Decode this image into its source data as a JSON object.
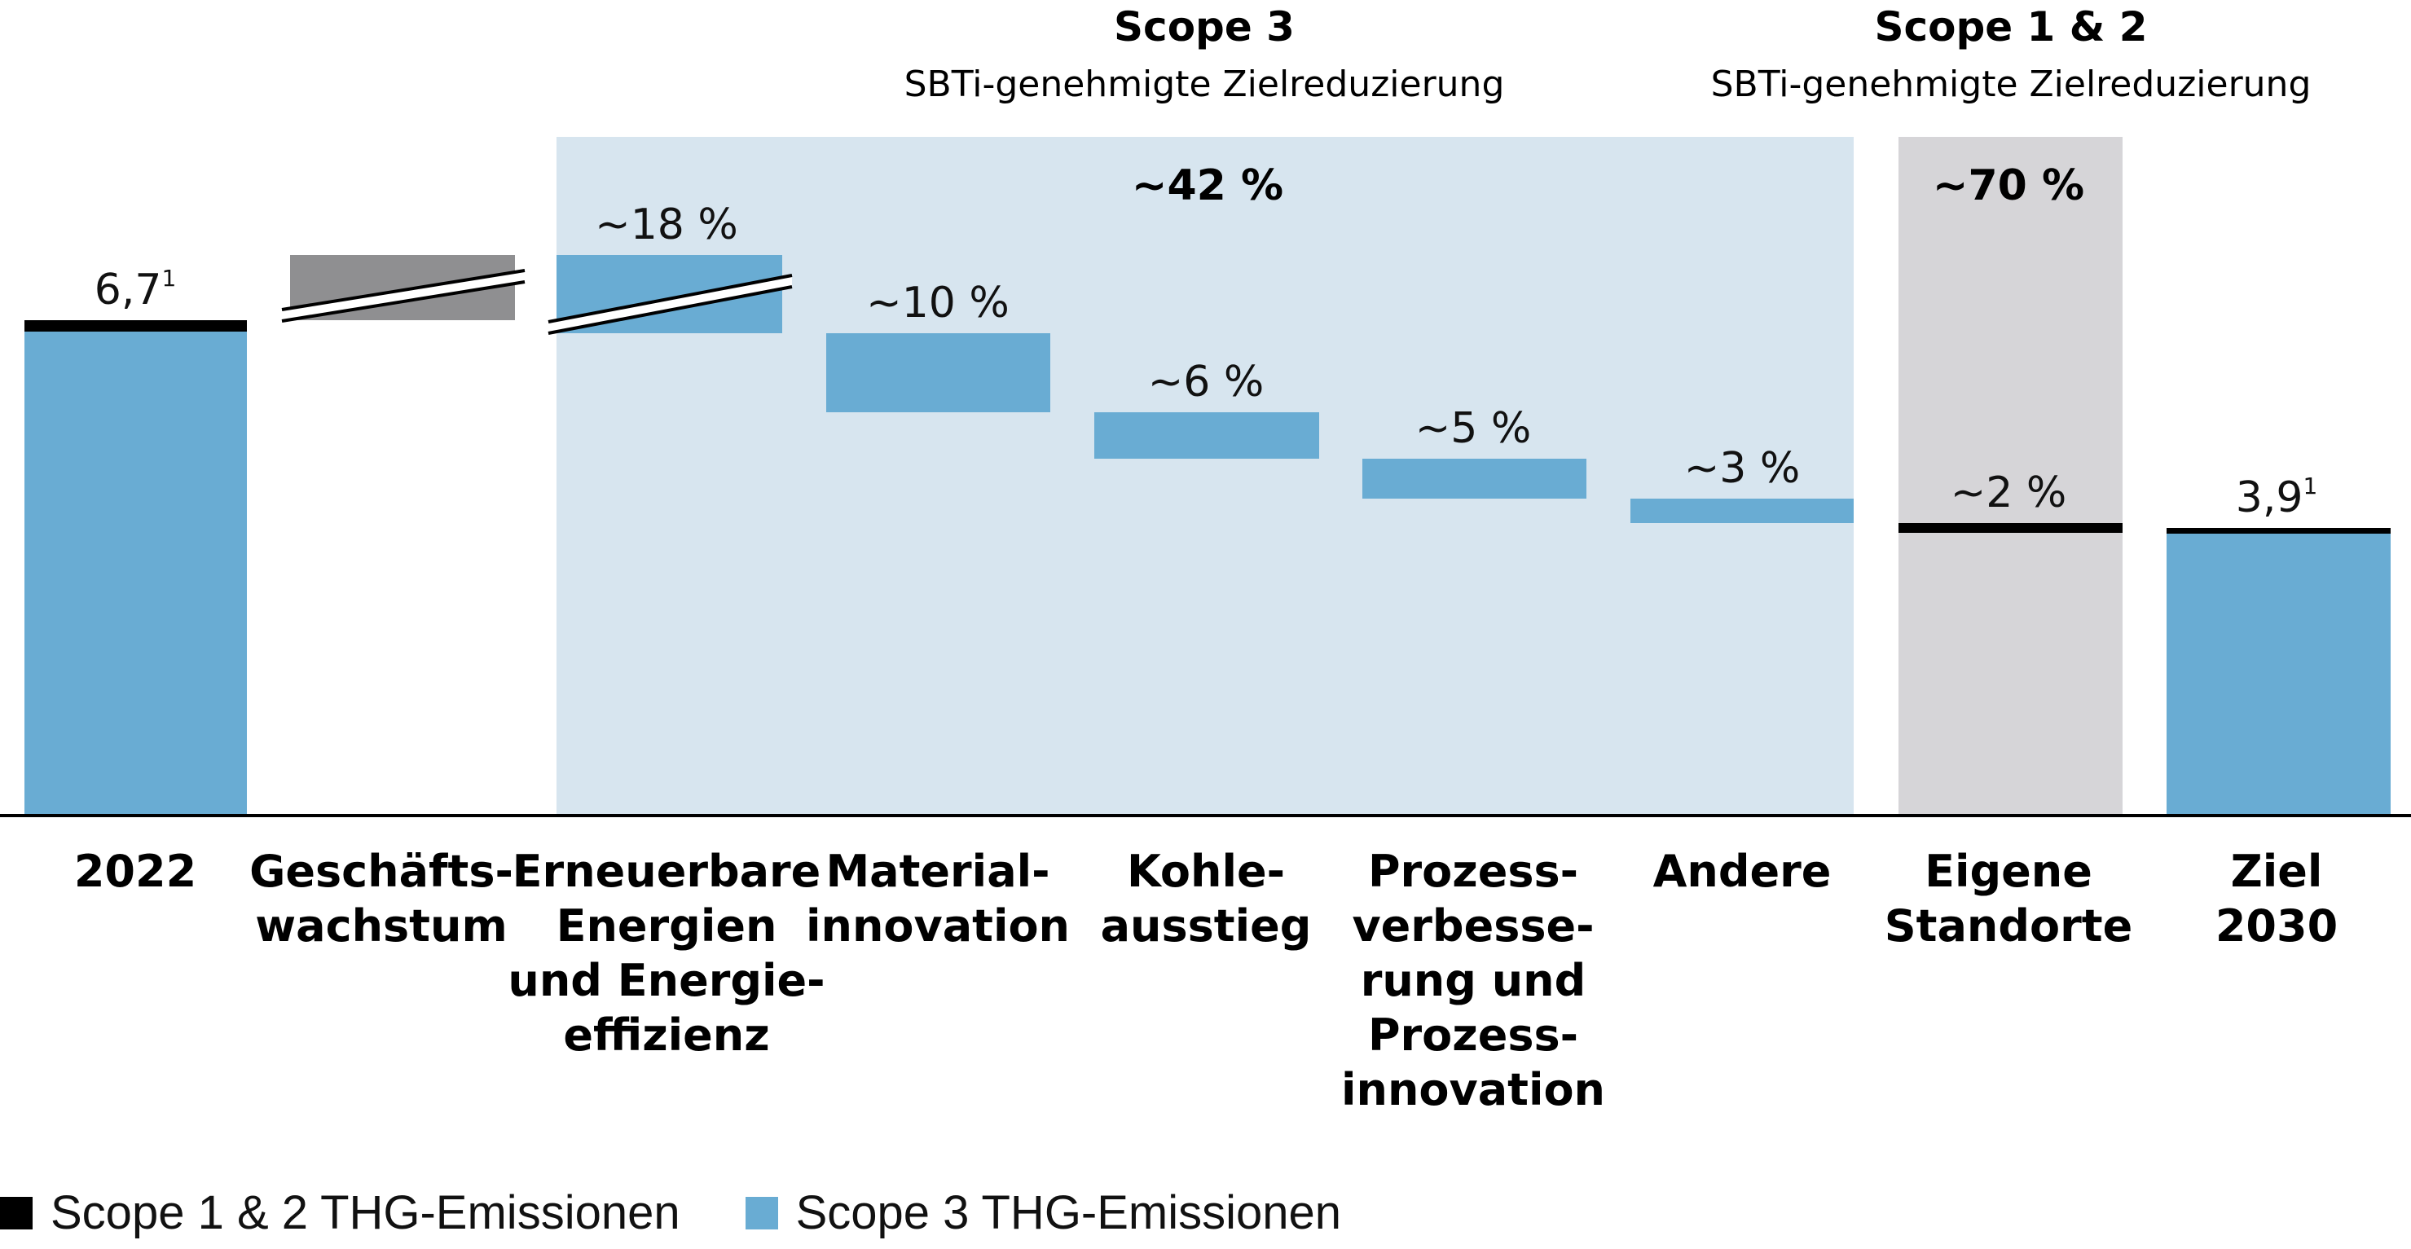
{
  "chart_data": {
    "type": "bar",
    "subtype": "waterfall",
    "groups": [
      {
        "title": "Scope 3",
        "subtitle": "SBTi-genehmigte Zielreduzierung",
        "summary": "~42 %",
        "color": "#d7e5ef"
      },
      {
        "title": "Scope 1 & 2",
        "subtitle": "SBTi-genehmigte Zielreduzierung",
        "summary": "~70 %",
        "color": "#d6d5d8"
      }
    ],
    "categories": [
      {
        "lines": [
          "2022"
        ],
        "value_label": "6,7",
        "value_sup": "1",
        "value": 6.7,
        "kind": "total"
      },
      {
        "lines": [
          "Geschäfts-",
          "wachstum"
        ],
        "value_label": "",
        "kind": "increase_broken"
      },
      {
        "lines": [
          "Erneuerbare",
          "Energien",
          "und Energie-",
          "effizienz"
        ],
        "value_label": "~18 %",
        "kind": "decrease_broken",
        "group": "Scope 3"
      },
      {
        "lines": [
          "Material-",
          "innovation"
        ],
        "value_label": "~10 %",
        "kind": "decrease",
        "group": "Scope 3"
      },
      {
        "lines": [
          "Kohle-",
          "ausstieg"
        ],
        "value_label": "~6 %",
        "kind": "decrease",
        "group": "Scope 3"
      },
      {
        "lines": [
          "Prozess-",
          "verbesse-",
          "rung und",
          "Prozess-",
          "innovation"
        ],
        "value_label": "~5 %",
        "kind": "decrease",
        "group": "Scope 3"
      },
      {
        "lines": [
          "Andere"
        ],
        "value_label": "~3 %",
        "kind": "decrease",
        "group": "Scope 3"
      },
      {
        "lines": [
          "Eigene",
          "Standorte"
        ],
        "value_label": "~2 %",
        "kind": "decrease_scope12",
        "group": "Scope 1 & 2"
      },
      {
        "lines": [
          "Ziel",
          "2030"
        ],
        "value_label": "3,9",
        "value_sup": "1",
        "value": 3.9,
        "kind": "total"
      }
    ],
    "legend": [
      {
        "label": "Scope 1 & 2 THG-Emissionen",
        "color": "#000000"
      },
      {
        "label": "Scope 3 THG-Emissionen",
        "color": "#69acd3"
      }
    ],
    "colors": {
      "scope3": "#69acd3",
      "scope12": "#000000",
      "growth": "#8f8f91",
      "axis": "#000000"
    }
  }
}
